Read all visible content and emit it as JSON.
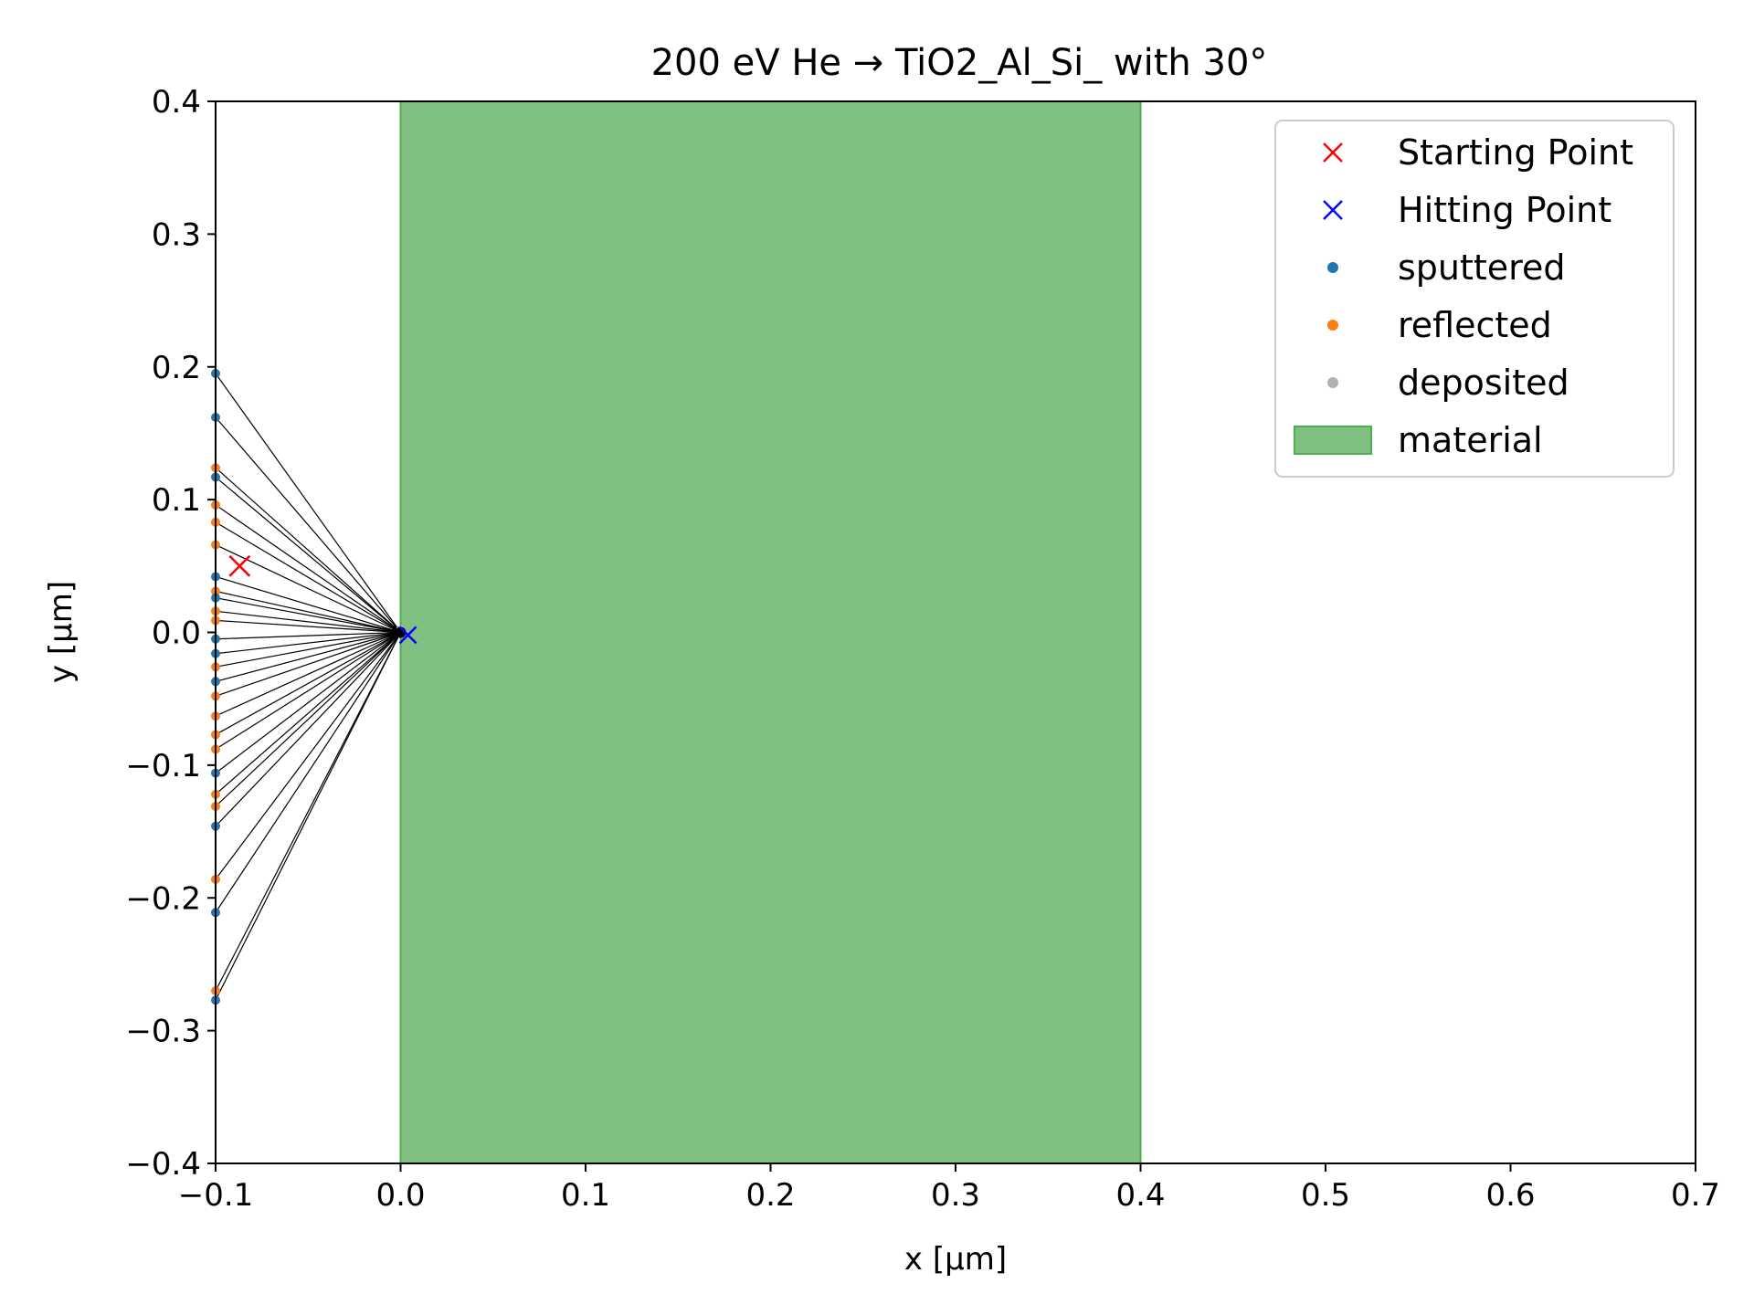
{
  "chart_data": {
    "type": "scatter",
    "title": "200 eV He → TiO2_Al_Si_ with 30°",
    "xlabel": "x [µm]",
    "ylabel": "y [µm]",
    "xlim": [
      -0.1,
      0.7
    ],
    "ylim": [
      -0.4,
      0.4
    ],
    "xticks": [
      -0.1,
      0.0,
      0.1,
      0.2,
      0.3,
      0.4,
      0.5,
      0.6,
      0.7
    ],
    "xtick_labels": [
      "−0.1",
      "0.0",
      "0.1",
      "0.2",
      "0.3",
      "0.4",
      "0.5",
      "0.6",
      "0.7"
    ],
    "yticks": [
      -0.4,
      -0.3,
      -0.2,
      -0.1,
      0.0,
      0.1,
      0.2,
      0.3,
      0.4
    ],
    "ytick_labels": [
      "−0.4",
      "−0.3",
      "−0.2",
      "−0.1",
      "0.0",
      "0.1",
      "0.2",
      "0.3",
      "0.4"
    ],
    "grid": false,
    "legend_position": "top-right",
    "legend": [
      {
        "label": "Starting Point",
        "marker": "x",
        "color": "#ff0000"
      },
      {
        "label": "Hitting Point",
        "marker": "x",
        "color": "#0000ff"
      },
      {
        "label": "sputtered",
        "marker": "dot",
        "color": "#1f77b4"
      },
      {
        "label": "reflected",
        "marker": "dot",
        "color": "#ff7f0e"
      },
      {
        "label": "deposited",
        "marker": "dot",
        "color": "#b0b0b0"
      },
      {
        "label": "material",
        "marker": "patch",
        "color": "#80c080"
      }
    ],
    "material_region": {
      "x_start": 0.0,
      "x_end": 0.4,
      "color": "#80c080",
      "edge_color": "#4caf50"
    },
    "starting_point": {
      "x": -0.087,
      "y": 0.05
    },
    "hitting_point": {
      "x": 0.004,
      "y": -0.002
    },
    "deposited_points": [
      {
        "x": 0.0,
        "y": 0.002
      },
      {
        "x": 0.002,
        "y": -0.001
      },
      {
        "x": 0.001,
        "y": 0.0
      }
    ],
    "trajectory_origin": {
      "x": 0.0,
      "y": 0.0
    },
    "sputtered_points": [
      {
        "x": -0.1,
        "y": 0.195
      },
      {
        "x": -0.1,
        "y": 0.162
      },
      {
        "x": -0.1,
        "y": 0.117
      },
      {
        "x": -0.1,
        "y": 0.042
      },
      {
        "x": -0.1,
        "y": 0.026
      },
      {
        "x": -0.1,
        "y": -0.005
      },
      {
        "x": -0.1,
        "y": -0.016
      },
      {
        "x": -0.1,
        "y": -0.037
      },
      {
        "x": -0.1,
        "y": -0.106
      },
      {
        "x": -0.1,
        "y": -0.146
      },
      {
        "x": -0.1,
        "y": -0.211
      },
      {
        "x": -0.1,
        "y": -0.277
      }
    ],
    "reflected_points": [
      {
        "x": -0.1,
        "y": 0.124
      },
      {
        "x": -0.1,
        "y": 0.096
      },
      {
        "x": -0.1,
        "y": 0.083
      },
      {
        "x": -0.1,
        "y": 0.066
      },
      {
        "x": -0.1,
        "y": 0.031
      },
      {
        "x": -0.1,
        "y": 0.016
      },
      {
        "x": -0.1,
        "y": 0.009
      },
      {
        "x": -0.1,
        "y": -0.026
      },
      {
        "x": -0.1,
        "y": -0.048
      },
      {
        "x": -0.1,
        "y": -0.063
      },
      {
        "x": -0.1,
        "y": -0.077
      },
      {
        "x": -0.1,
        "y": -0.088
      },
      {
        "x": -0.1,
        "y": -0.122
      },
      {
        "x": -0.1,
        "y": -0.131
      },
      {
        "x": -0.1,
        "y": -0.186
      },
      {
        "x": -0.1,
        "y": -0.27
      }
    ]
  }
}
